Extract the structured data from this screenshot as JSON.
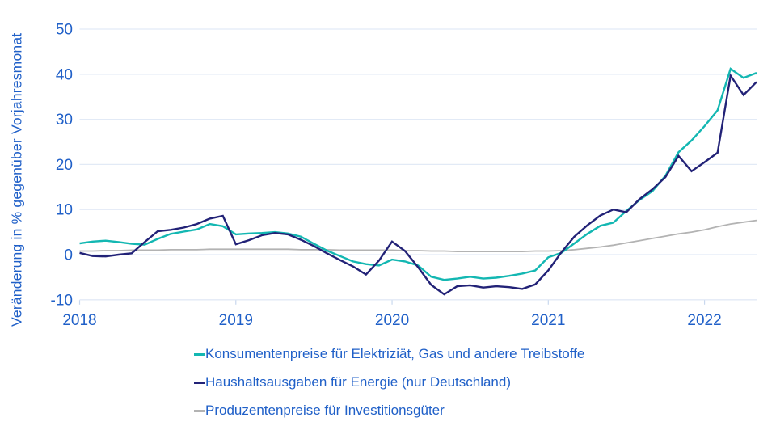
{
  "colors": {
    "background": "#ffffff",
    "axis_text": "#2060c8",
    "gridline": "#e2eaf6",
    "tick_mark": "#c9d8ee"
  },
  "chart_data": {
    "type": "line",
    "title": "",
    "xlabel": "",
    "ylabel": "Veränderung in % gegenüber Vorjahresmonat",
    "x_unit": "month",
    "x_range": "2018-01 to 2022-05",
    "xticks": [
      "2018",
      "2019",
      "2020",
      "2021",
      "2022"
    ],
    "yticks": [
      50,
      40,
      30,
      20,
      10,
      0,
      -10
    ],
    "ylim": [
      -10,
      50
    ],
    "grid": "horizontal",
    "legend_position": "bottom",
    "series": [
      {
        "name": "Konsumentenpreise für Elektriziät, Gas und andere Treibstoffe",
        "slug": "konsumentenpreise",
        "color": "#13b7b2",
        "stroke_width": 2.4,
        "values": [
          2.5,
          2.9,
          3.1,
          2.8,
          2.4,
          2.2,
          3.5,
          4.6,
          5.1,
          5.6,
          6.8,
          6.3,
          4.5,
          4.7,
          4.8,
          5.0,
          4.7,
          4.0,
          2.4,
          0.9,
          -0.3,
          -1.5,
          -2.1,
          -2.4,
          -1.1,
          -1.5,
          -2.4,
          -4.9,
          -5.6,
          -5.3,
          -4.9,
          -5.3,
          -5.1,
          -4.7,
          -4.2,
          -3.5,
          -0.6,
          0.4,
          2.5,
          4.6,
          6.4,
          7.1,
          9.7,
          12.1,
          14.1,
          17.5,
          22.7,
          25.3,
          28.5,
          32.0,
          41.2,
          39.2,
          40.3
        ]
      },
      {
        "name": "Haushaltsausgaben für Energie (nur Deutschland)",
        "slug": "haushaltsausgaben",
        "color": "#222277",
        "stroke_width": 2.4,
        "values": [
          0.4,
          -0.3,
          -0.4,
          0.0,
          0.3,
          2.8,
          5.2,
          5.5,
          6.0,
          6.8,
          8.0,
          8.6,
          2.3,
          3.2,
          4.3,
          4.8,
          4.5,
          3.3,
          1.9,
          0.3,
          -1.2,
          -2.6,
          -4.4,
          -1.3,
          2.9,
          0.8,
          -2.8,
          -6.7,
          -8.8,
          -7.0,
          -6.8,
          -7.3,
          -7.0,
          -7.2,
          -7.6,
          -6.6,
          -3.5,
          0.5,
          4.0,
          6.5,
          8.7,
          10.0,
          9.4,
          12.3,
          14.5,
          17.2,
          21.9,
          18.5,
          20.5,
          22.6,
          39.7,
          35.4,
          38.3
        ]
      },
      {
        "name": "Produzentenpreise für Investitionsgüter",
        "slug": "produzentenpreise",
        "color": "#b3b3b3",
        "stroke_width": 1.8,
        "values": [
          0.8,
          0.8,
          0.9,
          0.9,
          1.0,
          1.0,
          1.0,
          1.1,
          1.1,
          1.1,
          1.2,
          1.2,
          1.2,
          1.2,
          1.2,
          1.2,
          1.2,
          1.1,
          1.1,
          1.1,
          1.0,
          1.0,
          1.0,
          1.0,
          1.0,
          0.9,
          0.9,
          0.8,
          0.8,
          0.7,
          0.7,
          0.7,
          0.7,
          0.7,
          0.7,
          0.8,
          0.8,
          0.9,
          1.1,
          1.4,
          1.7,
          2.1,
          2.6,
          3.1,
          3.6,
          4.1,
          4.6,
          5.0,
          5.5,
          6.2,
          6.8,
          7.2,
          7.6
        ]
      }
    ]
  }
}
